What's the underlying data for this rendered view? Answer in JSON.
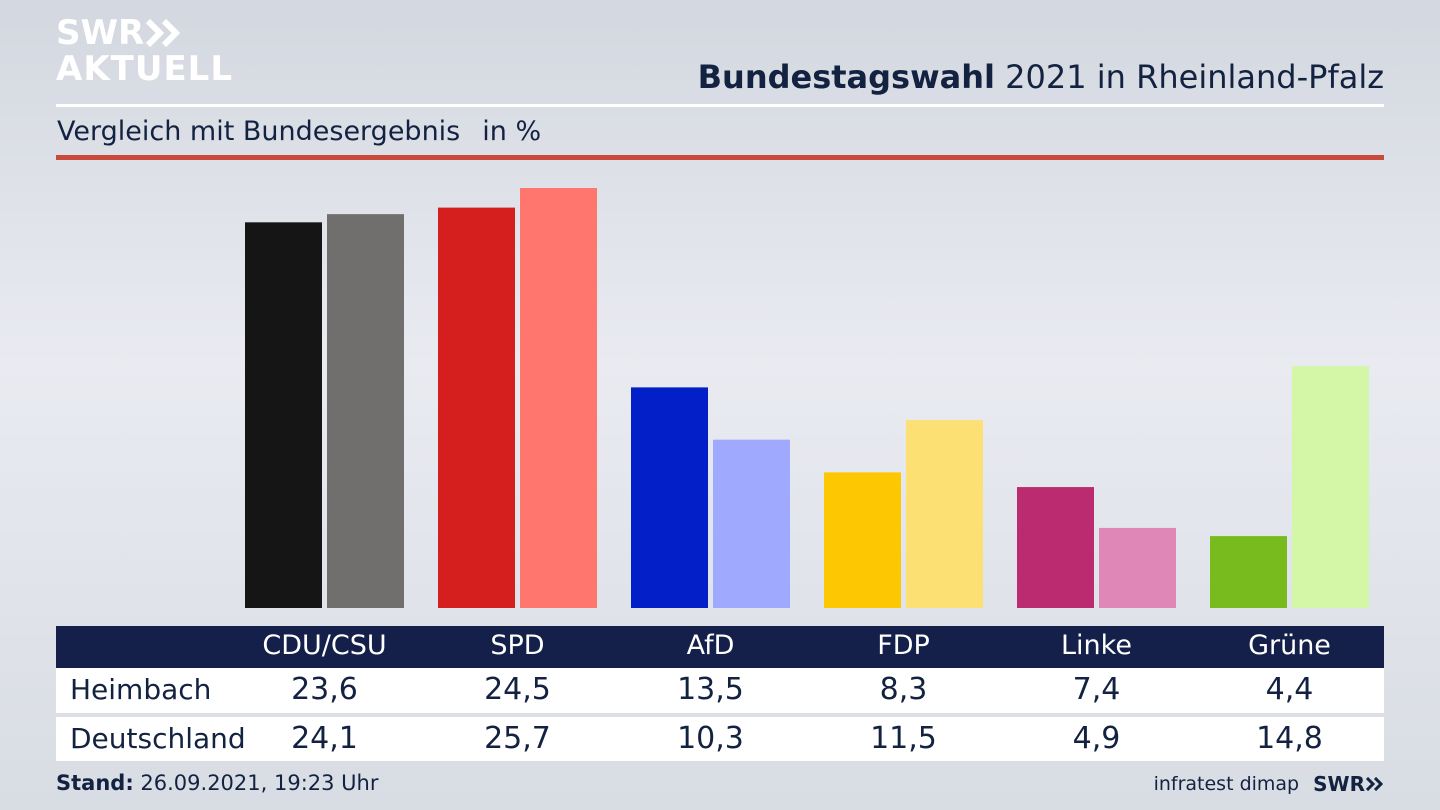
{
  "logo": {
    "line1": "SWR",
    "line2": "AKTUELL"
  },
  "headline": {
    "bold": "Bundestagswahl",
    "rest": " 2021 in Rheinland-Pfalz"
  },
  "subtitle": {
    "text": "Vergleich mit Bundesergebnis",
    "unit": "in %"
  },
  "table": {
    "rows": [
      {
        "label": "Heimbach",
        "values": [
          "23,6",
          "24,5",
          "13,5",
          "8,3",
          "7,4",
          "4,4"
        ]
      },
      {
        "label": "Deutschland",
        "values": [
          "24,1",
          "25,7",
          "10,3",
          "11,5",
          "4,9",
          "14,8"
        ]
      }
    ]
  },
  "footer": {
    "stand_label": "Stand:",
    "stand_value": " 26.09.2021, 19:23 Uhr",
    "source": "infratest dimap",
    "brand": "SWR"
  },
  "colors": {
    "primary": [
      "#151515",
      "#d51f1f",
      "#0320c8",
      "#fdc802",
      "#ba2b6f",
      "#78bb1e"
    ],
    "secondary": [
      "#706f6d",
      "#ff766f",
      "#9faaff",
      "#fde073",
      "#df87b7",
      "#d4f6a7"
    ],
    "navy": "#14204a",
    "accent_red": "#c94a3a"
  },
  "chart_data": {
    "type": "bar",
    "categories": [
      "CDU/CSU",
      "SPD",
      "AfD",
      "FDP",
      "Linke",
      "Grüne"
    ],
    "series": [
      {
        "name": "Heimbach",
        "values": [
          23.6,
          24.5,
          13.5,
          8.3,
          7.4,
          4.4
        ]
      },
      {
        "name": "Deutschland",
        "values": [
          24.1,
          25.7,
          10.3,
          11.5,
          4.9,
          14.8
        ]
      }
    ],
    "title": "Bundestagswahl 2021 in Rheinland-Pfalz",
    "subtitle": "Vergleich mit Bundesergebnis in %",
    "ylim": [
      0,
      25.7
    ],
    "grid": false
  }
}
